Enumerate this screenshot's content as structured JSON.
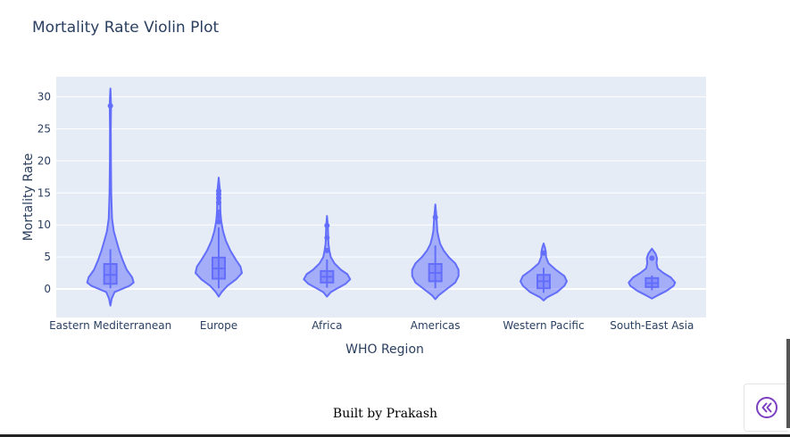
{
  "chart_data": {
    "type": "violin",
    "title": "Mortality Rate Violin Plot",
    "xlabel": "WHO Region",
    "ylabel": "Mortality Rate",
    "ylim": [
      -4.6,
      32.8
    ],
    "yticks": [
      0,
      5,
      10,
      15,
      20,
      25,
      30
    ],
    "grid": true,
    "color": "#636efa",
    "background": "#e5ecf6",
    "categories": [
      "Eastern Mediterranean",
      "Europe",
      "Africa",
      "Americas",
      "Western Pacific",
      "South-East Asia"
    ],
    "series": [
      {
        "category": "Eastern Mediterranean",
        "min": -2.6,
        "max": 31.3,
        "q1": 0.8,
        "median": 2.2,
        "q3": 3.9,
        "whisker_low": 0.1,
        "whisker_high": 6.2,
        "outliers": [
          28.6
        ],
        "density": [
          [
            -2.6,
            0
          ],
          [
            -1.5,
            1
          ],
          [
            -0.5,
            3
          ],
          [
            0.5,
            14
          ],
          [
            1,
            17
          ],
          [
            1.8,
            16
          ],
          [
            3,
            12
          ],
          [
            4.5,
            9
          ],
          [
            6,
            6.5
          ],
          [
            7.5,
            4.5
          ],
          [
            9,
            2.5
          ],
          [
            11,
            1.2
          ],
          [
            15,
            0.6
          ],
          [
            20,
            0.4
          ],
          [
            25,
            0.3
          ],
          [
            28.6,
            0.5
          ],
          [
            30,
            0.3
          ],
          [
            31.3,
            0
          ]
        ]
      },
      {
        "category": "Europe",
        "min": -1.2,
        "max": 17.4,
        "q1": 1.6,
        "median": 3.2,
        "q3": 4.9,
        "whisker_low": 0.1,
        "whisker_high": 9.6,
        "outliers": [
          10.5,
          11.3,
          12.0,
          13.5,
          14.2,
          14.8,
          15.3
        ],
        "density": [
          [
            -1.2,
            0
          ],
          [
            -0.5,
            2
          ],
          [
            0.5,
            6
          ],
          [
            1.5,
            12
          ],
          [
            2.5,
            16
          ],
          [
            3.5,
            15
          ],
          [
            4.5,
            12
          ],
          [
            6,
            8
          ],
          [
            7.5,
            5
          ],
          [
            9,
            3
          ],
          [
            10.5,
            1.8
          ],
          [
            12,
            1.2
          ],
          [
            14,
            1
          ],
          [
            15.5,
            0.8
          ],
          [
            17.4,
            0
          ]
        ]
      },
      {
        "category": "Africa",
        "min": -1.2,
        "max": 11.4,
        "q1": 1.0,
        "median": 1.9,
        "q3": 2.8,
        "whisker_low": 0.2,
        "whisker_high": 4.6,
        "outliers": [
          6.0,
          8.0,
          9.9
        ],
        "density": [
          [
            -1.2,
            0
          ],
          [
            -0.5,
            4
          ],
          [
            0,
            10
          ],
          [
            0.8,
            20
          ],
          [
            1.5,
            25
          ],
          [
            2.3,
            22
          ],
          [
            3,
            15
          ],
          [
            4,
            8
          ],
          [
            5,
            4
          ],
          [
            6,
            2.6
          ],
          [
            7,
            1.6
          ],
          [
            8,
            1.3
          ],
          [
            9,
            1.1
          ],
          [
            10,
            0.8
          ],
          [
            11.4,
            0
          ]
        ]
      },
      {
        "category": "Americas",
        "min": -1.6,
        "max": 13.2,
        "q1": 1.2,
        "median": 2.5,
        "q3": 3.9,
        "whisker_low": 0.1,
        "whisker_high": 6.8,
        "outliers": [
          11.2
        ],
        "density": [
          [
            -1.6,
            0
          ],
          [
            -1,
            2
          ],
          [
            0,
            7
          ],
          [
            1,
            12
          ],
          [
            2,
            14
          ],
          [
            3,
            14
          ],
          [
            4,
            12
          ],
          [
            5,
            8
          ],
          [
            6,
            5
          ],
          [
            7,
            3
          ],
          [
            8,
            2
          ],
          [
            9,
            1.2
          ],
          [
            11.2,
            0.7
          ],
          [
            13.2,
            0
          ]
        ]
      },
      {
        "category": "Western Pacific",
        "min": -1.8,
        "max": 7.1,
        "q1": 0.1,
        "median": 1.2,
        "q3": 2.2,
        "whisker_low": -0.6,
        "whisker_high": 3.3,
        "outliers": [
          5.6
        ],
        "density": [
          [
            -1.8,
            0
          ],
          [
            -1.3,
            3
          ],
          [
            -0.5,
            11
          ],
          [
            0.5,
            17
          ],
          [
            1.2,
            19
          ],
          [
            2,
            17
          ],
          [
            3,
            10
          ],
          [
            4,
            4
          ],
          [
            5,
            2
          ],
          [
            5.8,
            1.8
          ],
          [
            6.5,
            1
          ],
          [
            7.1,
            0
          ]
        ]
      },
      {
        "category": "South-East Asia",
        "min": -1.5,
        "max": 6.3,
        "q1": 0.3,
        "median": 0.9,
        "q3": 1.7,
        "whisker_low": -0.2,
        "whisker_high": 2.1,
        "outliers": [
          4.8
        ],
        "density": [
          [
            -1.5,
            0
          ],
          [
            -1,
            4
          ],
          [
            -0.3,
            10
          ],
          [
            0.5,
            15
          ],
          [
            1,
            16
          ],
          [
            1.8,
            13
          ],
          [
            2.5,
            8
          ],
          [
            3.2,
            4
          ],
          [
            4,
            3.2
          ],
          [
            4.8,
            3.5
          ],
          [
            5.5,
            2.5
          ],
          [
            6.3,
            0
          ]
        ]
      }
    ]
  },
  "footer": {
    "text": "Built by Prakash"
  },
  "ui": {
    "collapse_icon": "double-chevron-left-icon"
  }
}
